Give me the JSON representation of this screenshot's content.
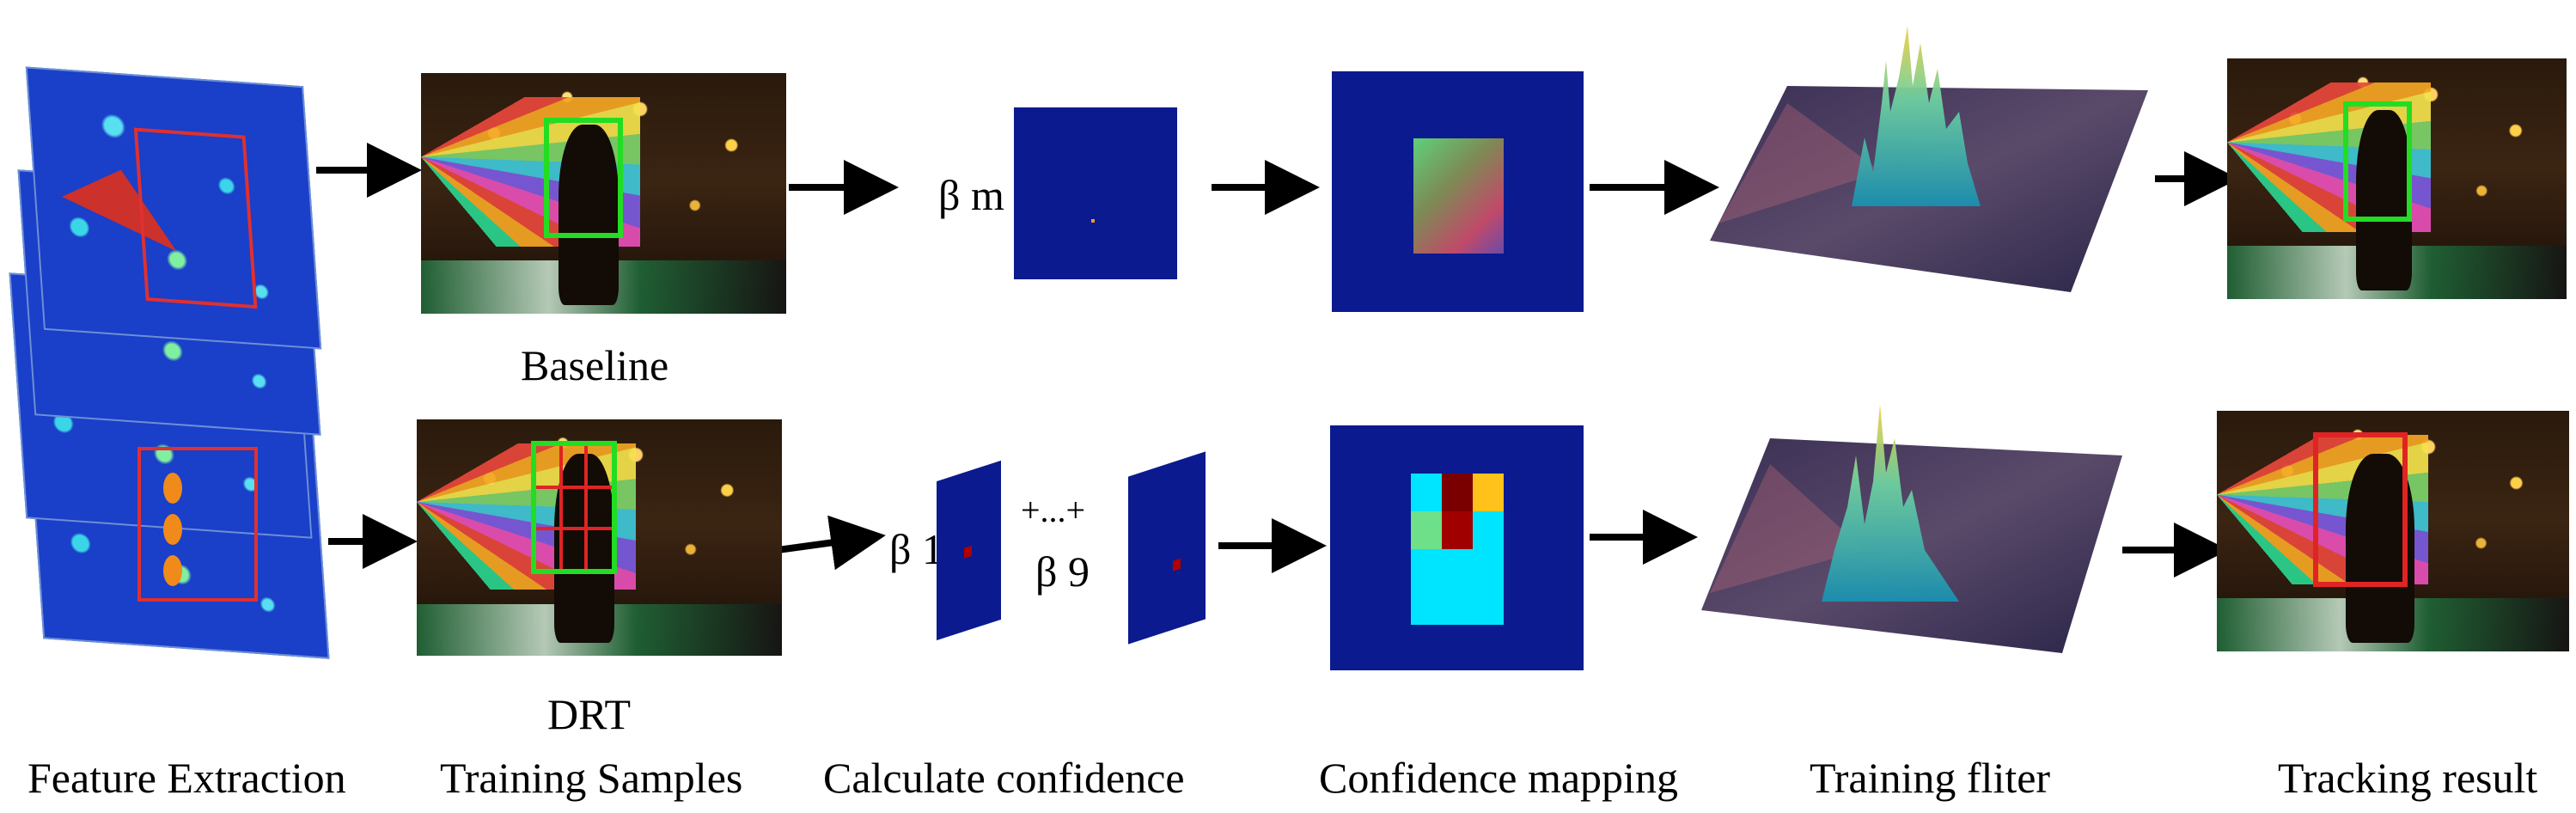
{
  "labels": {
    "baseline": "Baseline",
    "drt": "DRT",
    "beta_top": "β m",
    "beta_1": "β 1",
    "plus_dots": "+...+",
    "beta_9": "β 9"
  },
  "stages": [
    "Feature Extraction",
    "Training Samples",
    "Calculate confidence",
    "Confidence mapping",
    "Training fliter",
    "Tracking result"
  ],
  "colors": {
    "navy": "#0b1a8f",
    "green_box": "#22dd22",
    "red_box": "#e02424",
    "arrow": "#000000"
  },
  "confidence_grid": {
    "cells": [
      [
        "#00e5ff",
        "#7a0000",
        "#ffc21a"
      ],
      [
        "#6fe08a",
        "#a10000",
        "#00e5ff"
      ],
      [
        "#00e5ff",
        "#00e5ff",
        "#00e5ff"
      ],
      [
        "#00e5ff",
        "#00e5ff",
        "#00e5ff"
      ]
    ]
  }
}
